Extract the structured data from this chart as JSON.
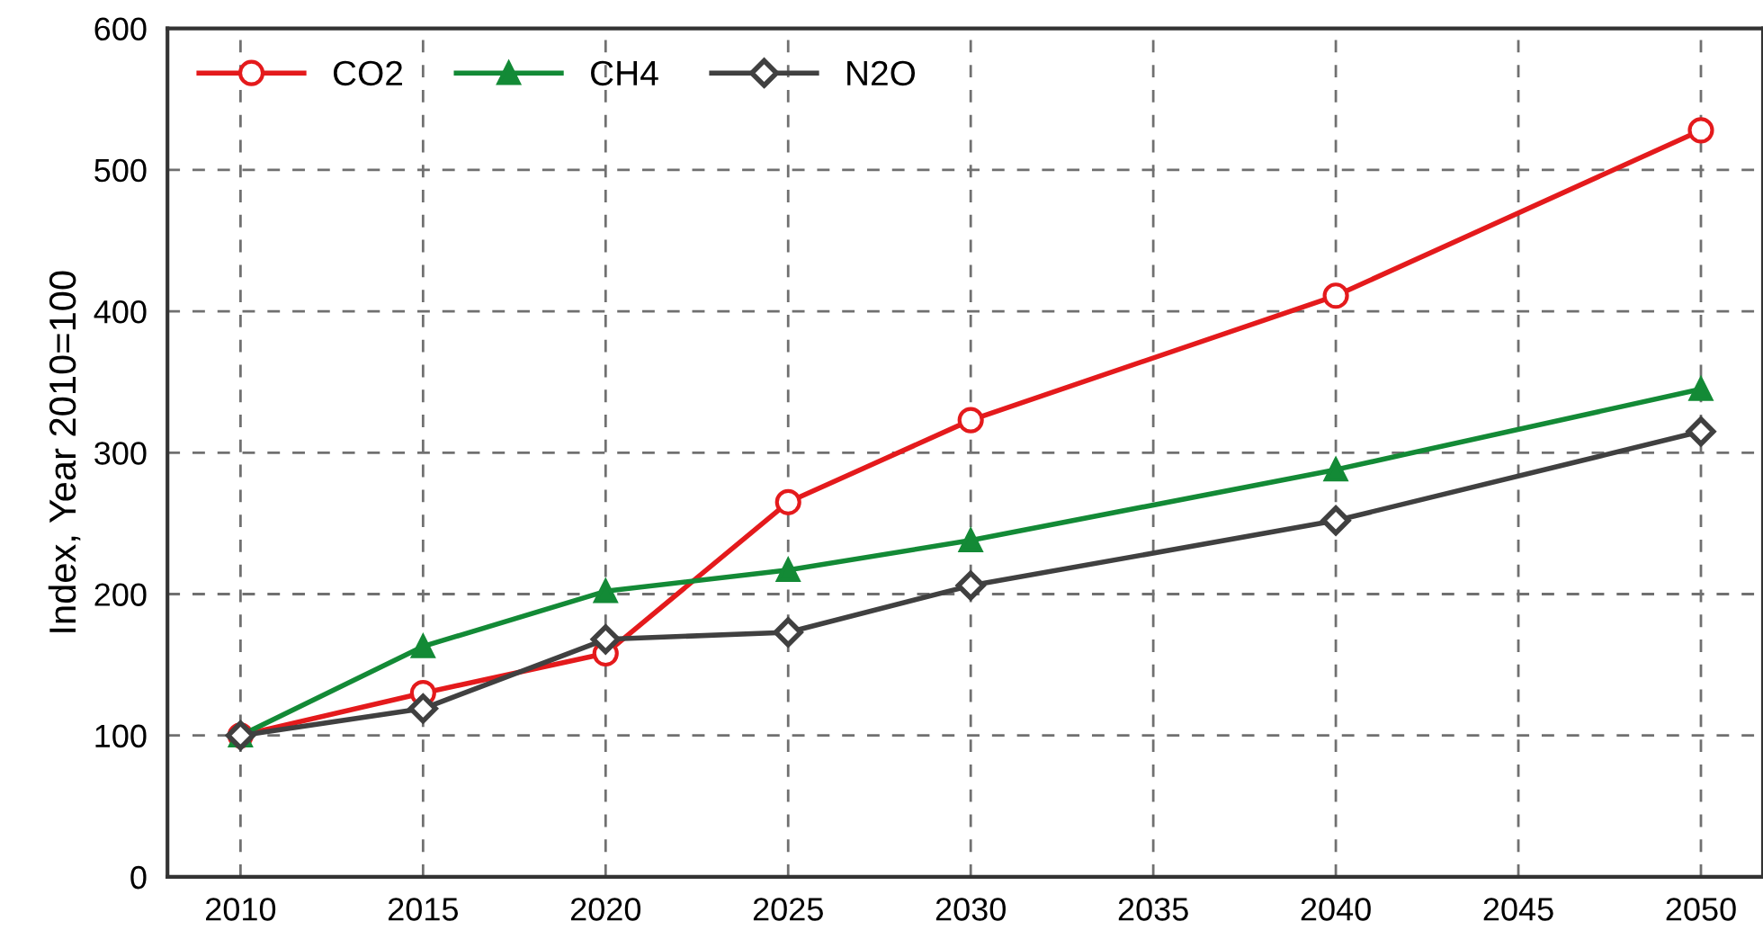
{
  "chart_data": {
    "type": "line",
    "ylabel": "Index, Year 2010=100",
    "x": [
      2010,
      2015,
      2020,
      2025,
      2030,
      2040,
      2050
    ],
    "series": [
      {
        "name": "CO2",
        "color": "#e41a1c",
        "marker": "circle",
        "values": [
          100,
          130,
          158,
          265,
          323,
          411,
          528
        ]
      },
      {
        "name": "CH4",
        "color": "#138a36",
        "marker": "triangle",
        "values": [
          100,
          163,
          202,
          217,
          238,
          288,
          345
        ]
      },
      {
        "name": "N2O",
        "color": "#404040",
        "marker": "diamond",
        "values": [
          100,
          119,
          168,
          173,
          206,
          252,
          315
        ]
      }
    ],
    "xlim": [
      2008,
      2051.7
    ],
    "xticks": [
      2010,
      2015,
      2020,
      2025,
      2030,
      2035,
      2040,
      2045,
      2050
    ],
    "ylim": [
      0,
      600
    ],
    "yticks": [
      0,
      100,
      200,
      300,
      400,
      500,
      600
    ],
    "grid": true,
    "legend": "top left",
    "line_style": "solid"
  }
}
